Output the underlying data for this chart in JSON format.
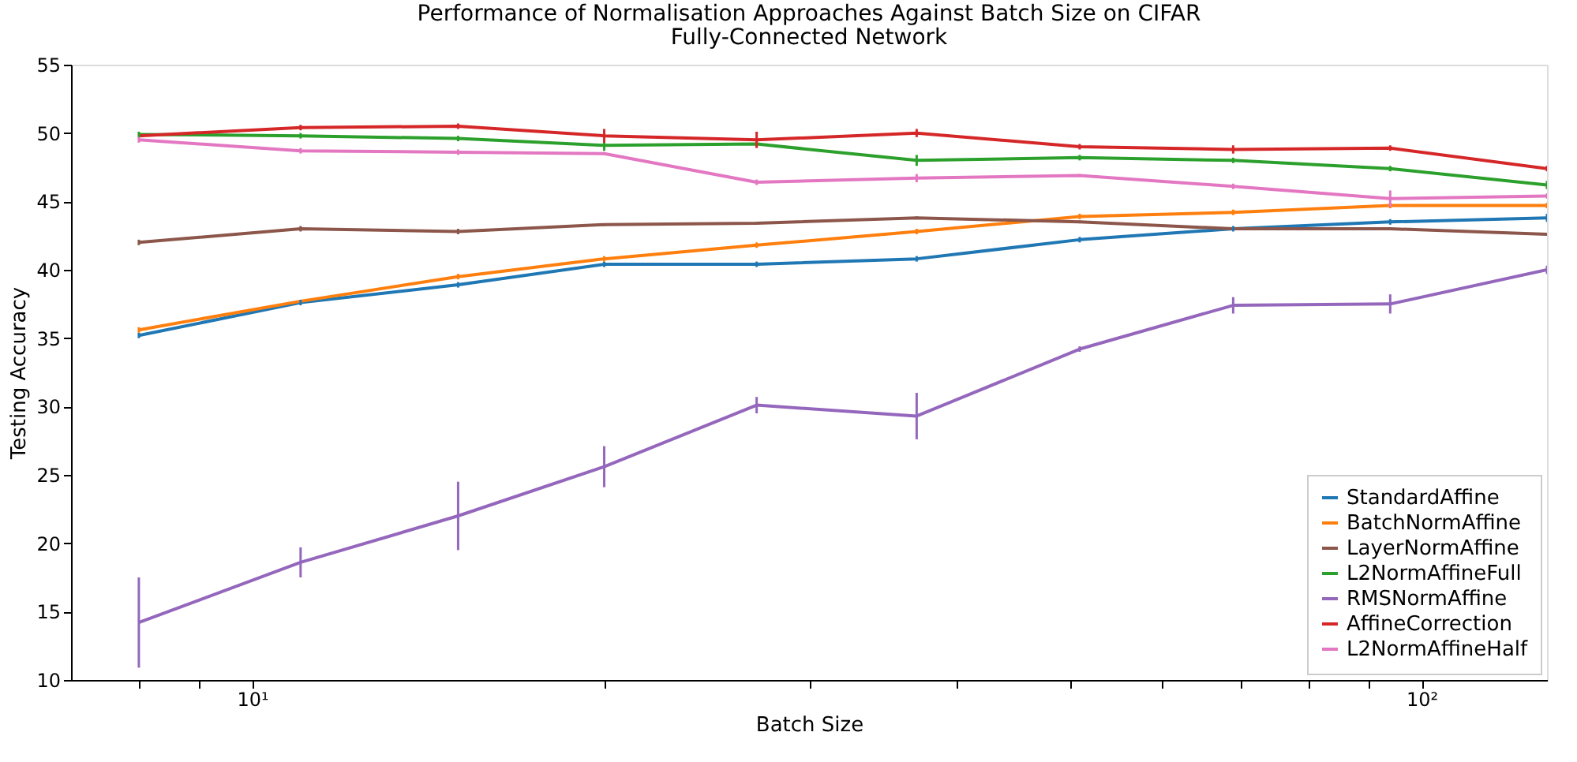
{
  "chart_data": {
    "type": "line",
    "title": "Performance of Normalisation Approaches Against Batch Size on CIFAR",
    "subtitle": "Fully-Connected Network",
    "xlabel": "Batch Size",
    "ylabel": "Testing Accuracy",
    "log": "x",
    "x": [
      8,
      11,
      15,
      20,
      27,
      37,
      51,
      69,
      94,
      128
    ],
    "xlim": [
      7,
      128
    ],
    "xticks": [
      {
        "value": 8,
        "label": null
      },
      {
        "value": 9,
        "label": null
      },
      {
        "value": 10,
        "label": "10¹"
      },
      {
        "value": 20,
        "label": null
      },
      {
        "value": 30,
        "label": null
      },
      {
        "value": 40,
        "label": null
      },
      {
        "value": 50,
        "label": null
      },
      {
        "value": 60,
        "label": null
      },
      {
        "value": 70,
        "label": null
      },
      {
        "value": 80,
        "label": null
      },
      {
        "value": 90,
        "label": null
      },
      {
        "value": 100,
        "label": "10²"
      }
    ],
    "ylim": [
      10,
      55
    ],
    "yticks": [
      10,
      15,
      20,
      25,
      30,
      35,
      40,
      45,
      50,
      55
    ],
    "grid": false,
    "legend": "bottom right",
    "line_style": "solid",
    "series": [
      {
        "name": "StandardAffine",
        "color": "#1f77b4",
        "values": [
          35.2,
          37.6,
          38.9,
          40.4,
          40.4,
          40.8,
          42.2,
          43.0,
          43.5,
          43.8
        ],
        "errors": [
          0.2,
          0.2,
          0.2,
          0.2,
          0.2,
          0.2,
          0.2,
          0.2,
          0.2,
          0.3
        ]
      },
      {
        "name": "BatchNormAffine",
        "color": "#ff7f0e",
        "values": [
          35.6,
          37.7,
          39.5,
          40.8,
          41.8,
          42.8,
          43.9,
          44.2,
          44.7,
          44.7
        ],
        "errors": [
          0.2,
          null,
          0.2,
          0.2,
          0.2,
          0.2,
          0.2,
          0.2,
          0.2,
          0.2
        ]
      },
      {
        "name": "LayerNormAffine",
        "color": "#8c564b",
        "values": [
          42.0,
          43.0,
          42.8,
          43.3,
          43.4,
          43.8,
          43.5,
          43.0,
          43.0,
          42.6
        ],
        "errors": [
          0.2,
          0.2,
          0.2,
          0.1,
          0.1,
          0.1,
          0.1,
          null,
          0.1,
          0.1
        ]
      },
      {
        "name": "L2NormAffineFull",
        "color": "#2ca02c",
        "values": [
          49.9,
          49.8,
          49.6,
          49.1,
          49.2,
          48.0,
          48.2,
          48.0,
          47.4,
          46.2
        ],
        "errors": [
          0.2,
          0.2,
          0.2,
          0.4,
          0.2,
          0.4,
          0.2,
          0.2,
          0.2,
          0.3
        ]
      },
      {
        "name": "RMSNormAffine",
        "color": "#9467bd",
        "values": [
          14.2,
          18.6,
          22.0,
          25.6,
          30.1,
          29.3,
          34.2,
          37.4,
          37.5,
          40.0
        ],
        "errors": [
          3.3,
          1.1,
          2.5,
          1.5,
          0.6,
          1.7,
          0.2,
          0.6,
          0.7,
          0.3
        ]
      },
      {
        "name": "AffineCorrection",
        "color": "#d62728",
        "values": [
          49.8,
          50.4,
          50.5,
          49.8,
          49.5,
          50.0,
          49.0,
          48.8,
          48.9,
          47.4
        ],
        "errors": [
          null,
          0.2,
          0.2,
          0.5,
          0.6,
          0.3,
          0.2,
          0.3,
          0.2,
          0.2
        ]
      },
      {
        "name": "L2NormAffineHalf",
        "color": "#e377c2",
        "values": [
          49.5,
          48.7,
          48.6,
          48.5,
          46.4,
          46.7,
          46.9,
          46.1,
          45.2,
          45.4
        ],
        "errors": [
          0.2,
          0.2,
          0.2,
          0.1,
          0.2,
          0.3,
          0.1,
          0.2,
          0.6,
          0.2
        ]
      }
    ]
  }
}
